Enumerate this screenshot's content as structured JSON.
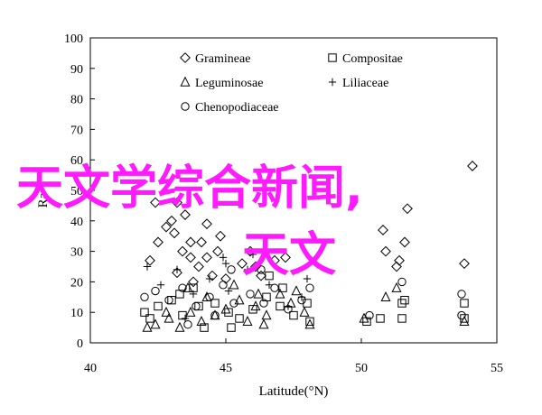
{
  "chart_data": {
    "type": "scatter",
    "title": "",
    "xlabel": "Latitude(°N)",
    "ylabel": "Ra",
    "xlim": [
      40,
      55
    ],
    "ylim": [
      0,
      100
    ],
    "xticks": [
      "40",
      "45",
      "50",
      "55"
    ],
    "yticks": [
      "0",
      "10",
      "20",
      "30",
      "40",
      "50",
      "60",
      "70",
      "80",
      "90",
      "100"
    ],
    "grid": false,
    "legend_position": "top-center",
    "series": [
      {
        "name": "Gramineae",
        "marker": "diamond",
        "points": [
          [
            43.5,
            42
          ],
          [
            43.0,
            40
          ],
          [
            42.8,
            38
          ],
          [
            44.3,
            39
          ],
          [
            44.8,
            35
          ],
          [
            43.4,
            30
          ],
          [
            43.7,
            33
          ],
          [
            43.1,
            36
          ],
          [
            42.5,
            33
          ],
          [
            42.2,
            27
          ],
          [
            43.7,
            28
          ],
          [
            44.3,
            28
          ],
          [
            44.7,
            30
          ],
          [
            45.6,
            26
          ],
          [
            43.2,
            23
          ],
          [
            43.8,
            20
          ],
          [
            44.5,
            22
          ],
          [
            45.0,
            21
          ],
          [
            46.3,
            22
          ],
          [
            46.1,
            25
          ],
          [
            46.8,
            27
          ],
          [
            47.2,
            28
          ],
          [
            45.9,
            30
          ],
          [
            44.1,
            33
          ],
          [
            43.2,
            46
          ],
          [
            42.4,
            46
          ],
          [
            44.0,
            25
          ],
          [
            50.9,
            30
          ],
          [
            51.6,
            33
          ],
          [
            51.4,
            27
          ],
          [
            51.3,
            25
          ],
          [
            50.8,
            37
          ],
          [
            53.8,
            26
          ],
          [
            54.1,
            58
          ],
          [
            51.7,
            44
          ]
        ]
      },
      {
        "name": "Compositae",
        "marker": "square",
        "points": [
          [
            42.0,
            10
          ],
          [
            42.2,
            8
          ],
          [
            42.5,
            12
          ],
          [
            43.0,
            14
          ],
          [
            43.3,
            16
          ],
          [
            43.8,
            18
          ],
          [
            44.0,
            12
          ],
          [
            44.6,
            13
          ],
          [
            45.1,
            10
          ],
          [
            45.5,
            8
          ],
          [
            46.0,
            11
          ],
          [
            46.5,
            15
          ],
          [
            47.0,
            12
          ],
          [
            47.5,
            9
          ],
          [
            48.0,
            13
          ],
          [
            48.1,
            7
          ],
          [
            44.2,
            5
          ],
          [
            45.2,
            5
          ],
          [
            46.6,
            22
          ],
          [
            47.1,
            18
          ],
          [
            43.4,
            9
          ],
          [
            50.7,
            8
          ],
          [
            51.6,
            14
          ],
          [
            51.5,
            13
          ],
          [
            51.5,
            8
          ],
          [
            53.8,
            13
          ],
          [
            53.8,
            8
          ],
          [
            50.2,
            7
          ]
        ]
      },
      {
        "name": "Leguminosae",
        "marker": "triangle",
        "points": [
          [
            42.1,
            5
          ],
          [
            42.4,
            6
          ],
          [
            42.9,
            8
          ],
          [
            43.3,
            5
          ],
          [
            43.7,
            10
          ],
          [
            44.1,
            7
          ],
          [
            44.6,
            9
          ],
          [
            45.0,
            11
          ],
          [
            45.5,
            14
          ],
          [
            46.1,
            12
          ],
          [
            46.5,
            9
          ],
          [
            47.0,
            16
          ],
          [
            47.4,
            13
          ],
          [
            47.9,
            10
          ],
          [
            48.1,
            6
          ],
          [
            46.4,
            6
          ],
          [
            45.8,
            7
          ],
          [
            44.3,
            15
          ],
          [
            43.6,
            18
          ],
          [
            45.3,
            19
          ],
          [
            46.2,
            16
          ],
          [
            47.6,
            17
          ],
          [
            42.8,
            10
          ],
          [
            50.1,
            8
          ],
          [
            50.9,
            15
          ],
          [
            51.3,
            18
          ],
          [
            53.8,
            7
          ]
        ]
      },
      {
        "name": "Liliaceae",
        "marker": "plus",
        "points": [
          [
            42.1,
            25
          ],
          [
            42.6,
            19
          ],
          [
            43.2,
            24
          ],
          [
            43.8,
            16
          ],
          [
            44.4,
            21
          ],
          [
            45.1,
            17
          ],
          [
            45.8,
            24
          ],
          [
            46.6,
            19
          ],
          [
            47.3,
            12
          ],
          [
            47.8,
            15
          ],
          [
            48.0,
            21
          ],
          [
            46.0,
            29
          ],
          [
            45.0,
            26
          ],
          [
            43.5,
            8
          ],
          [
            44.9,
            28
          ]
        ]
      },
      {
        "name": "Chenopodiaceae",
        "marker": "circle",
        "points": [
          [
            42.0,
            15
          ],
          [
            42.4,
            17
          ],
          [
            42.9,
            14
          ],
          [
            43.4,
            18
          ],
          [
            43.9,
            12
          ],
          [
            44.4,
            15
          ],
          [
            44.9,
            19
          ],
          [
            45.3,
            13
          ],
          [
            45.9,
            16
          ],
          [
            46.4,
            13
          ],
          [
            46.8,
            18
          ],
          [
            47.3,
            11
          ],
          [
            47.8,
            14
          ],
          [
            48.1,
            18
          ],
          [
            46.3,
            24
          ],
          [
            44.6,
            9
          ],
          [
            43.6,
            6
          ],
          [
            45.2,
            24
          ],
          [
            50.3,
            9
          ],
          [
            51.5,
            20
          ],
          [
            53.7,
            16
          ],
          [
            53.7,
            9
          ]
        ]
      }
    ]
  },
  "overlay": {
    "line1": "天文学综合新闻,",
    "line2": "天文"
  }
}
